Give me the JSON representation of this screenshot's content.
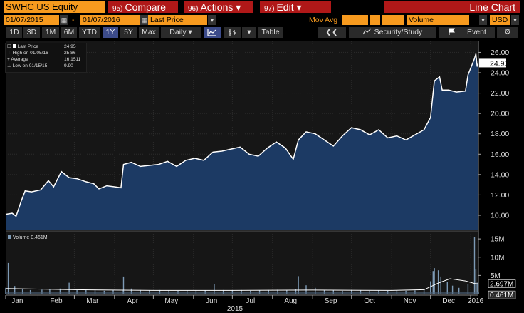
{
  "header": {
    "ticker": "SWHC US Equity",
    "compare": {
      "num": "95)",
      "label": "Compare"
    },
    "actions": {
      "num": "96)",
      "label": "Actions ▾"
    },
    "edit": {
      "num": "97)",
      "label": "Edit ▾"
    },
    "title": "Line Chart"
  },
  "range": {
    "start": "01/07/2015",
    "dash": "-",
    "end": "01/07/2016",
    "field": "Last Price",
    "study": "Mov Avg",
    "volume_field": "Volume",
    "currency": "USD"
  },
  "periods": [
    "1D",
    "3D",
    "1M",
    "6M",
    "YTD",
    "1Y",
    "5Y",
    "Max"
  ],
  "active_period": "1Y",
  "frequency": "Daily ▾",
  "tools": {
    "table": "Table",
    "back": "❮❮",
    "security_study": "Security/Study",
    "event": "Event",
    "gear": "⚙"
  },
  "colors": {
    "orange": "#f79a1e",
    "red": "#b01818",
    "area": "#1c3a64",
    "line": "#ffffff",
    "volume": "#7d9ab5"
  },
  "legend": {
    "last_price_label": "Last Price",
    "last_price": "24.95",
    "high_label": "High on 01/05/16",
    "high": "25.86",
    "average_label": "Average",
    "average": "16.1511",
    "low_label": "Low on 01/15/15",
    "low": "9.90"
  },
  "volume_legend": "Volume 0.461M",
  "chart_data": {
    "type": "area",
    "x_ticks": [
      "Jan",
      "Feb",
      "Mar",
      "Apr",
      "May",
      "Jun",
      "Jul",
      "Aug",
      "Sep",
      "Oct",
      "Nov",
      "Dec",
      "2016"
    ],
    "year_label": "2015",
    "y_ticks": [
      "10.00",
      "12.00",
      "14.00",
      "16.00",
      "18.00",
      "20.00",
      "22.00",
      "24.00",
      "26.00"
    ],
    "ylim": [
      8.6,
      26.8
    ],
    "last_value_label": "24.95",
    "price_series": [
      {
        "date": "2015-01-07",
        "value": 10.1
      },
      {
        "date": "2015-01-12",
        "value": 10.2
      },
      {
        "date": "2015-01-15",
        "value": 9.9
      },
      {
        "date": "2015-01-19",
        "value": 11.4
      },
      {
        "date": "2015-01-22",
        "value": 12.4
      },
      {
        "date": "2015-01-27",
        "value": 12.3
      },
      {
        "date": "2015-02-03",
        "value": 12.5
      },
      {
        "date": "2015-02-09",
        "value": 13.4
      },
      {
        "date": "2015-02-13",
        "value": 12.8
      },
      {
        "date": "2015-02-19",
        "value": 14.3
      },
      {
        "date": "2015-02-25",
        "value": 13.7
      },
      {
        "date": "2015-03-03",
        "value": 13.6
      },
      {
        "date": "2015-03-10",
        "value": 13.3
      },
      {
        "date": "2015-03-16",
        "value": 13.1
      },
      {
        "date": "2015-03-20",
        "value": 12.6
      },
      {
        "date": "2015-03-26",
        "value": 12.9
      },
      {
        "date": "2015-04-01",
        "value": 12.8
      },
      {
        "date": "2015-04-06",
        "value": 12.7
      },
      {
        "date": "2015-04-08",
        "value": 15.0
      },
      {
        "date": "2015-04-14",
        "value": 15.2
      },
      {
        "date": "2015-04-21",
        "value": 14.8
      },
      {
        "date": "2015-04-28",
        "value": 14.9
      },
      {
        "date": "2015-05-05",
        "value": 15.0
      },
      {
        "date": "2015-05-12",
        "value": 15.3
      },
      {
        "date": "2015-05-19",
        "value": 14.8
      },
      {
        "date": "2015-05-26",
        "value": 15.4
      },
      {
        "date": "2015-06-02",
        "value": 15.6
      },
      {
        "date": "2015-06-09",
        "value": 15.4
      },
      {
        "date": "2015-06-16",
        "value": 16.2
      },
      {
        "date": "2015-06-23",
        "value": 16.3
      },
      {
        "date": "2015-06-30",
        "value": 16.5
      },
      {
        "date": "2015-07-07",
        "value": 16.7
      },
      {
        "date": "2015-07-14",
        "value": 16.0
      },
      {
        "date": "2015-07-21",
        "value": 15.8
      },
      {
        "date": "2015-07-28",
        "value": 16.6
      },
      {
        "date": "2015-08-04",
        "value": 17.2
      },
      {
        "date": "2015-08-11",
        "value": 16.6
      },
      {
        "date": "2015-08-17",
        "value": 15.5
      },
      {
        "date": "2015-08-21",
        "value": 17.4
      },
      {
        "date": "2015-08-27",
        "value": 18.2
      },
      {
        "date": "2015-09-03",
        "value": 18.0
      },
      {
        "date": "2015-09-10",
        "value": 17.4
      },
      {
        "date": "2015-09-17",
        "value": 16.8
      },
      {
        "date": "2015-09-24",
        "value": 17.8
      },
      {
        "date": "2015-10-01",
        "value": 18.6
      },
      {
        "date": "2015-10-08",
        "value": 18.4
      },
      {
        "date": "2015-10-15",
        "value": 17.9
      },
      {
        "date": "2015-10-22",
        "value": 18.4
      },
      {
        "date": "2015-10-29",
        "value": 17.6
      },
      {
        "date": "2015-11-05",
        "value": 17.8
      },
      {
        "date": "2015-11-12",
        "value": 17.4
      },
      {
        "date": "2015-11-19",
        "value": 17.9
      },
      {
        "date": "2015-11-26",
        "value": 18.4
      },
      {
        "date": "2015-12-01",
        "value": 19.6
      },
      {
        "date": "2015-12-04",
        "value": 23.2
      },
      {
        "date": "2015-12-08",
        "value": 23.6
      },
      {
        "date": "2015-12-10",
        "value": 22.3
      },
      {
        "date": "2015-12-15",
        "value": 22.3
      },
      {
        "date": "2015-12-21",
        "value": 22.1
      },
      {
        "date": "2015-12-28",
        "value": 22.2
      },
      {
        "date": "2015-12-30",
        "value": 23.8
      },
      {
        "date": "2016-01-04",
        "value": 25.4
      },
      {
        "date": "2016-01-05",
        "value": 25.86
      },
      {
        "date": "2016-01-06",
        "value": 24.6
      },
      {
        "date": "2016-01-07",
        "value": 24.95
      }
    ],
    "volume_panel": {
      "y_ticks": [
        "5M",
        "10M",
        "15M"
      ],
      "ylim": [
        0,
        16
      ],
      "labels": [
        "2.697M",
        "0.461M"
      ],
      "bars": [
        {
          "date": "2015-01-07",
          "value": 1.6
        },
        {
          "date": "2015-01-09",
          "value": 8.4
        },
        {
          "date": "2015-01-14",
          "value": 2.1
        },
        {
          "date": "2015-01-20",
          "value": 1.2
        },
        {
          "date": "2015-01-26",
          "value": 1.0
        },
        {
          "date": "2015-02-04",
          "value": 1.1
        },
        {
          "date": "2015-02-10",
          "value": 1.2
        },
        {
          "date": "2015-02-18",
          "value": 1.4
        },
        {
          "date": "2015-02-25",
          "value": 3.0
        },
        {
          "date": "2015-03-03",
          "value": 1.0
        },
        {
          "date": "2015-03-10",
          "value": 1.1
        },
        {
          "date": "2015-03-17",
          "value": 0.9
        },
        {
          "date": "2015-03-24",
          "value": 0.8
        },
        {
          "date": "2015-03-31",
          "value": 1.0
        },
        {
          "date": "2015-04-07",
          "value": 0.9
        },
        {
          "date": "2015-04-08",
          "value": 4.7
        },
        {
          "date": "2015-04-14",
          "value": 1.4
        },
        {
          "date": "2015-04-21",
          "value": 1.0
        },
        {
          "date": "2015-04-28",
          "value": 0.9
        },
        {
          "date": "2015-05-06",
          "value": 1.0
        },
        {
          "date": "2015-05-13",
          "value": 0.9
        },
        {
          "date": "2015-05-20",
          "value": 0.8
        },
        {
          "date": "2015-05-27",
          "value": 0.9
        },
        {
          "date": "2015-06-03",
          "value": 1.0
        },
        {
          "date": "2015-06-10",
          "value": 0.9
        },
        {
          "date": "2015-06-17",
          "value": 2.6
        },
        {
          "date": "2015-06-24",
          "value": 1.0
        },
        {
          "date": "2015-07-01",
          "value": 0.9
        },
        {
          "date": "2015-07-08",
          "value": 1.0
        },
        {
          "date": "2015-07-15",
          "value": 0.8
        },
        {
          "date": "2015-07-22",
          "value": 0.9
        },
        {
          "date": "2015-07-29",
          "value": 1.0
        },
        {
          "date": "2015-08-05",
          "value": 1.1
        },
        {
          "date": "2015-08-12",
          "value": 1.0
        },
        {
          "date": "2015-08-19",
          "value": 1.3
        },
        {
          "date": "2015-08-21",
          "value": 4.8
        },
        {
          "date": "2015-08-27",
          "value": 2.3
        },
        {
          "date": "2015-09-03",
          "value": 1.6
        },
        {
          "date": "2015-09-10",
          "value": 1.0
        },
        {
          "date": "2015-09-17",
          "value": 0.9
        },
        {
          "date": "2015-09-24",
          "value": 0.8
        },
        {
          "date": "2015-10-01",
          "value": 1.0
        },
        {
          "date": "2015-10-08",
          "value": 0.9
        },
        {
          "date": "2015-10-15",
          "value": 0.8
        },
        {
          "date": "2015-10-22",
          "value": 0.9
        },
        {
          "date": "2015-10-29",
          "value": 0.8
        },
        {
          "date": "2015-11-05",
          "value": 0.9
        },
        {
          "date": "2015-11-12",
          "value": 0.8
        },
        {
          "date": "2015-11-19",
          "value": 0.9
        },
        {
          "date": "2015-11-26",
          "value": 1.2
        },
        {
          "date": "2015-12-01",
          "value": 3.4
        },
        {
          "date": "2015-12-03",
          "value": 6.2
        },
        {
          "date": "2015-12-04",
          "value": 7.0
        },
        {
          "date": "2015-12-07",
          "value": 6.4
        },
        {
          "date": "2015-12-09",
          "value": 4.7
        },
        {
          "date": "2015-12-14",
          "value": 3.2
        },
        {
          "date": "2015-12-18",
          "value": 2.2
        },
        {
          "date": "2015-12-23",
          "value": 1.6
        },
        {
          "date": "2015-12-30",
          "value": 2.6
        },
        {
          "date": "2016-01-04",
          "value": 15.5
        },
        {
          "date": "2016-01-05",
          "value": 6.8
        },
        {
          "date": "2016-01-06",
          "value": 3.0
        },
        {
          "date": "2016-01-07",
          "value": 0.461
        }
      ],
      "moving_average": [
        {
          "date": "2015-01-07",
          "value": 1.4
        },
        {
          "date": "2015-03-01",
          "value": 1.1
        },
        {
          "date": "2015-05-01",
          "value": 0.9
        },
        {
          "date": "2015-07-01",
          "value": 0.9
        },
        {
          "date": "2015-09-01",
          "value": 1.0
        },
        {
          "date": "2015-11-01",
          "value": 0.9
        },
        {
          "date": "2015-11-26",
          "value": 1.1
        },
        {
          "date": "2015-12-07",
          "value": 2.9
        },
        {
          "date": "2015-12-16",
          "value": 4.1
        },
        {
          "date": "2015-12-28",
          "value": 3.5
        },
        {
          "date": "2016-01-04",
          "value": 2.8
        },
        {
          "date": "2016-01-07",
          "value": 2.697
        }
      ]
    }
  }
}
